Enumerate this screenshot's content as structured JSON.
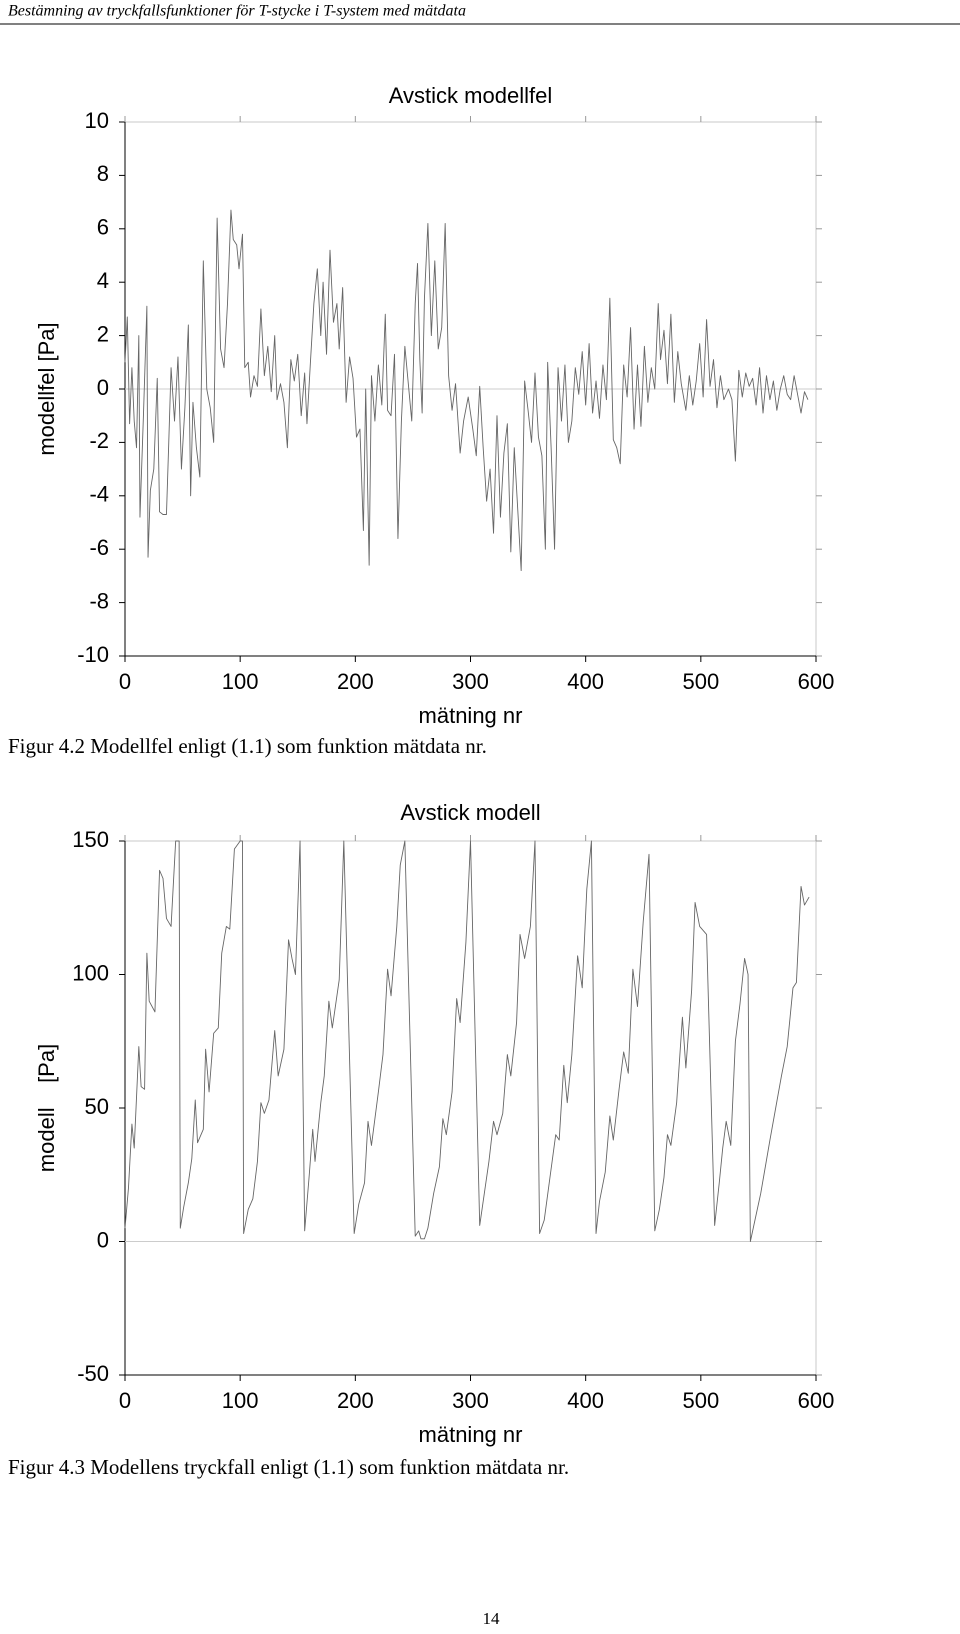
{
  "header": "Bestämning av tryckfallsfunktioner för T-stycke i T-system med mätdata",
  "page_number": "14",
  "chart_data": [
    {
      "type": "line",
      "title": "Avstick modellfel",
      "x_label": "mätning nr",
      "y_label": "modellfel [Pa]",
      "caption": "Figur 4.2 Modellfel enligt (1.1) som funktion mätdata nr.",
      "color": "#666666",
      "zero_line": true,
      "xlim": [
        0,
        600
      ],
      "ylim": [
        -10,
        10
      ],
      "xticks": [
        0,
        100,
        200,
        300,
        400,
        500,
        600
      ],
      "yticks": [
        -10,
        -8,
        -6,
        -4,
        -2,
        0,
        2,
        4,
        6,
        8,
        10
      ],
      "x": [
        0,
        2,
        4,
        6,
        8,
        10,
        12,
        13,
        16,
        19,
        20,
        22,
        25,
        28,
        30,
        33,
        36,
        38,
        40,
        43,
        46,
        49,
        52,
        55,
        57,
        59,
        62,
        65,
        68,
        71,
        74,
        77,
        80,
        83,
        86,
        89,
        92,
        94,
        97,
        99,
        102,
        104,
        107,
        109,
        112,
        115,
        118,
        121,
        124,
        127,
        130,
        132,
        135,
        138,
        141,
        144,
        147,
        150,
        153,
        156,
        158,
        161,
        164,
        167,
        170,
        172,
        175,
        178,
        181,
        184,
        186,
        189,
        192,
        195,
        198,
        201,
        204,
        207,
        209,
        212,
        214,
        217,
        220,
        223,
        226,
        228,
        231,
        234,
        237,
        240,
        243,
        246,
        249,
        252,
        254,
        256,
        258,
        260,
        263,
        266,
        269,
        272,
        275,
        278,
        281,
        284,
        287,
        291,
        294,
        298,
        302,
        305,
        308,
        311,
        314,
        317,
        320,
        323,
        326,
        329,
        332,
        335,
        338,
        341,
        344,
        347,
        350,
        353,
        356,
        359,
        362,
        365,
        367,
        370,
        373,
        376,
        379,
        382,
        385,
        388,
        391,
        394,
        397,
        400,
        403,
        406,
        409,
        412,
        415,
        418,
        421,
        424,
        427,
        430,
        433,
        436,
        439,
        442,
        445,
        448,
        451,
        454,
        457,
        460,
        463,
        465,
        468,
        471,
        474,
        477,
        480,
        483,
        487,
        490,
        493,
        496,
        499,
        502,
        505,
        508,
        511,
        514,
        517,
        520,
        524,
        527,
        530,
        533,
        536,
        539,
        542,
        545,
        548,
        551,
        554,
        557,
        560,
        563,
        566,
        569,
        572,
        575,
        578,
        581,
        584,
        587,
        590,
        593
      ],
      "values": [
        1,
        2.7,
        -1.3,
        0.8,
        -1.2,
        -2.2,
        2,
        -4.8,
        -1,
        3.1,
        -6.3,
        -3.8,
        -3,
        0.4,
        -4.6,
        -4.7,
        -4.7,
        -2,
        0.8,
        -1.2,
        1.2,
        -3,
        -0.7,
        2.4,
        -4,
        -0.5,
        -2.2,
        -3.3,
        4.8,
        0,
        -0.7,
        -2,
        6.4,
        1.5,
        0.8,
        3.2,
        6.7,
        5.6,
        5.4,
        4.5,
        5.8,
        0.8,
        1,
        -0.3,
        0.5,
        0.1,
        3,
        0.5,
        1.6,
        -0.1,
        2,
        -0.4,
        0.2,
        -0.5,
        -2.2,
        1.1,
        0.3,
        1.3,
        -1,
        0.6,
        -1.3,
        1,
        3.2,
        4.5,
        2,
        4,
        1.3,
        5.2,
        2.5,
        3.2,
        1.5,
        3.8,
        -0.5,
        1.2,
        0.4,
        -1.8,
        -1.5,
        -5.3,
        0,
        -6.6,
        0.5,
        -1.2,
        0.9,
        -0.6,
        2.8,
        -0.8,
        -1,
        1.3,
        -5.6,
        -1.2,
        1.6,
        0.2,
        -1.2,
        3.2,
        4.7,
        1.1,
        -0.9,
        3.4,
        6.2,
        2,
        4.8,
        1.5,
        2.3,
        6.2,
        0.5,
        -0.8,
        0.2,
        -2.4,
        -1.2,
        -0.3,
        -1.5,
        -2.5,
        0.1,
        -2.2,
        -4.2,
        -3,
        -5.4,
        -1,
        -4.8,
        -2.4,
        -1.3,
        -6.1,
        -2.2,
        -4.5,
        -6.8,
        0.3,
        -0.8,
        -2,
        0.6,
        -1.8,
        -2.5,
        -6,
        1,
        -2.2,
        -6,
        0.8,
        -1.2,
        0.9,
        -2,
        -1.2,
        0.8,
        -0.2,
        1.4,
        -0.6,
        1.7,
        -0.9,
        0.3,
        -1.1,
        0.9,
        -0.4,
        3.4,
        -1.9,
        -2.2,
        -2.8,
        0.9,
        -0.3,
        2.3,
        -1.5,
        0.9,
        -1.4,
        1.6,
        -0.5,
        0.8,
        0,
        3.2,
        1.1,
        2.2,
        0.2,
        2.8,
        -0.5,
        1.4,
        0.2,
        -0.8,
        0.5,
        -0.6,
        0.3,
        1.7,
        -0.3,
        2.6,
        0.1,
        1.1,
        -0.7,
        0.5,
        -0.4,
        0,
        -0.4,
        -2.7,
        0.7,
        -0.3,
        0.6,
        0.1,
        0.4,
        -0.6,
        0.8,
        -0.9,
        0.5,
        -0.4,
        0.3,
        -0.8,
        0,
        0.5,
        -0.2,
        -0.4,
        0.5,
        -0.2,
        -0.9,
        -0.1,
        -0.4
      ]
    },
    {
      "type": "line",
      "title": "Avstick modell",
      "x_label": "mätning nr",
      "y_label": "modell    [Pa]",
      "caption": "Figur 4.3 Modellens tryckfall enligt (1.1) som funktion mätdata nr.",
      "color": "#666666",
      "zero_line": true,
      "xlim": [
        0,
        600
      ],
      "ylim": [
        -50,
        150
      ],
      "xticks": [
        0,
        100,
        200,
        300,
        400,
        500,
        600
      ],
      "yticks": [
        -50,
        0,
        50,
        100,
        150
      ],
      "x": [
        0,
        3,
        6,
        8,
        12,
        14,
        17,
        19,
        21,
        26,
        30,
        33,
        36,
        40,
        44,
        47,
        48,
        51,
        55,
        58,
        61,
        63,
        68,
        70,
        73,
        77,
        81,
        84,
        88,
        91,
        95,
        100,
        102,
        103,
        107,
        111,
        115,
        118,
        121,
        125,
        130,
        133,
        138,
        142,
        145,
        148,
        152,
        156,
        160,
        163,
        165,
        170,
        173,
        177,
        180,
        186,
        190,
        199,
        203,
        208,
        211,
        214,
        220,
        224,
        228,
        231,
        236,
        239,
        243,
        252,
        255,
        257,
        260,
        263,
        268,
        273,
        276,
        279,
        284,
        288,
        291,
        296,
        300,
        308,
        312,
        316,
        320,
        323,
        328,
        332,
        335,
        340,
        343,
        347,
        352,
        356,
        360,
        364,
        369,
        374,
        377,
        381,
        384,
        388,
        393,
        397,
        401,
        405,
        409,
        412,
        417,
        421,
        424,
        429,
        433,
        437,
        441,
        445,
        450,
        455,
        460,
        464,
        468,
        471,
        474,
        479,
        484,
        487,
        492,
        495,
        499,
        505,
        512,
        516,
        519,
        522,
        526,
        530,
        534,
        538,
        541,
        543,
        547,
        552,
        556,
        560,
        565,
        570,
        575,
        580,
        583,
        587,
        590,
        594
      ],
      "values": [
        5,
        20,
        44,
        35,
        73,
        58,
        57,
        108,
        90,
        86,
        139,
        136,
        121,
        118,
        150,
        150,
        5,
        13,
        22,
        31,
        53,
        37,
        42,
        72,
        56,
        78,
        80,
        108,
        118,
        117,
        147,
        150,
        150,
        3,
        12,
        16,
        30,
        52,
        48,
        53,
        79,
        62,
        72,
        113,
        106,
        100,
        150,
        4,
        25,
        42,
        30,
        52,
        62,
        90,
        80,
        98,
        150,
        3,
        14,
        22,
        45,
        36,
        56,
        70,
        102,
        92,
        118,
        141,
        150,
        2,
        4,
        1,
        1,
        5,
        18,
        28,
        46,
        40,
        56,
        91,
        82,
        112,
        150,
        6,
        18,
        30,
        45,
        40,
        48,
        70,
        62,
        82,
        115,
        106,
        118,
        150,
        3,
        8,
        24,
        40,
        38,
        66,
        52,
        70,
        107,
        95,
        132,
        150,
        3,
        15,
        26,
        47,
        38,
        57,
        71,
        63,
        102,
        88,
        120,
        145,
        4,
        12,
        24,
        40,
        36,
        52,
        84,
        65,
        94,
        127,
        118,
        115,
        6,
        22,
        35,
        45,
        36,
        75,
        89,
        106,
        100,
        0,
        8,
        18,
        28,
        38,
        50,
        62,
        73,
        95,
        97,
        133,
        126,
        129
      ]
    }
  ]
}
